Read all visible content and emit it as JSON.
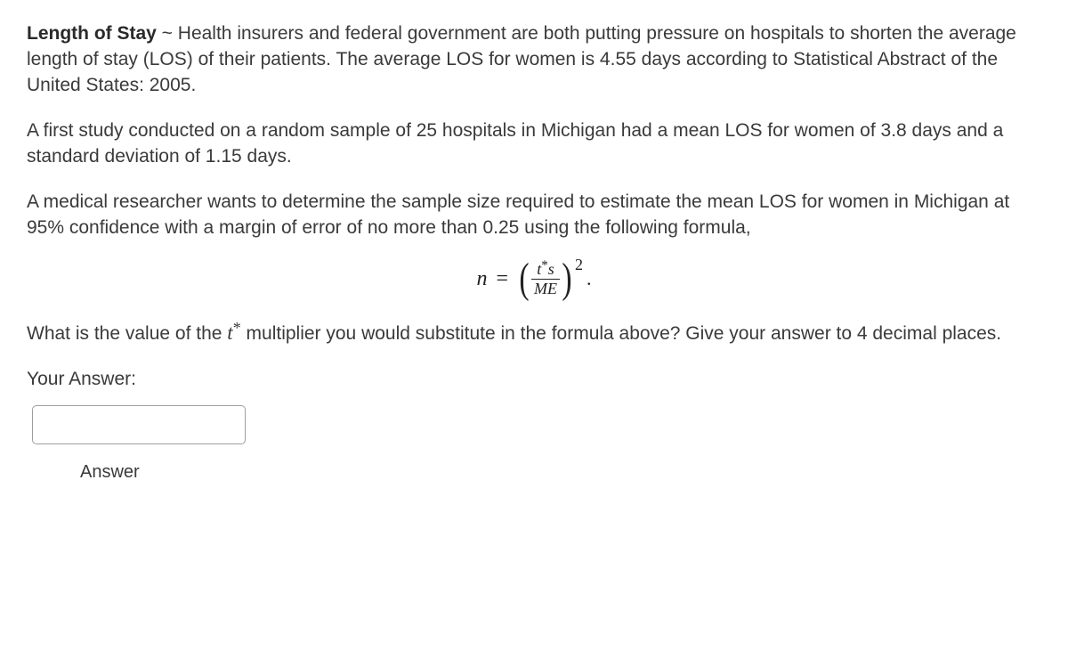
{
  "paragraphs": {
    "p1_boldlead": "Length of Stay",
    "p1_tilde": " ~ ",
    "p1_rest": "Health insurers and federal government are both putting pressure on hospitals to shorten the average length of stay (LOS) of their patients. The average LOS for women is 4.55 days according to Statistical Abstract of the United States: 2005.",
    "p2": "A first study conducted on a random sample of 25 hospitals in Michigan had a mean LOS for women of 3.8 days and a standard deviation of 1.15 days.",
    "p3": "A medical researcher wants to determine the sample size required to estimate the mean LOS for women in Michigan at 95% confidence with a margin of error of no more than 0.25 using the following formula,",
    "p4_a": "What is the value of the ",
    "p4_tstar": "t*",
    "p4_b": " multiplier you would substitute in the formula above? Give your answer to 4 decimal places."
  },
  "formula": {
    "n_label": "n",
    "equals": "=",
    "lparen": "(",
    "rparen": ")",
    "frac_num": "t*s",
    "frac_den": "ME",
    "exponent": "2",
    "trailing_period": "."
  },
  "answer_section": {
    "your_answer_label": "Your Answer:",
    "input_value": "",
    "button_label": "Answer"
  }
}
